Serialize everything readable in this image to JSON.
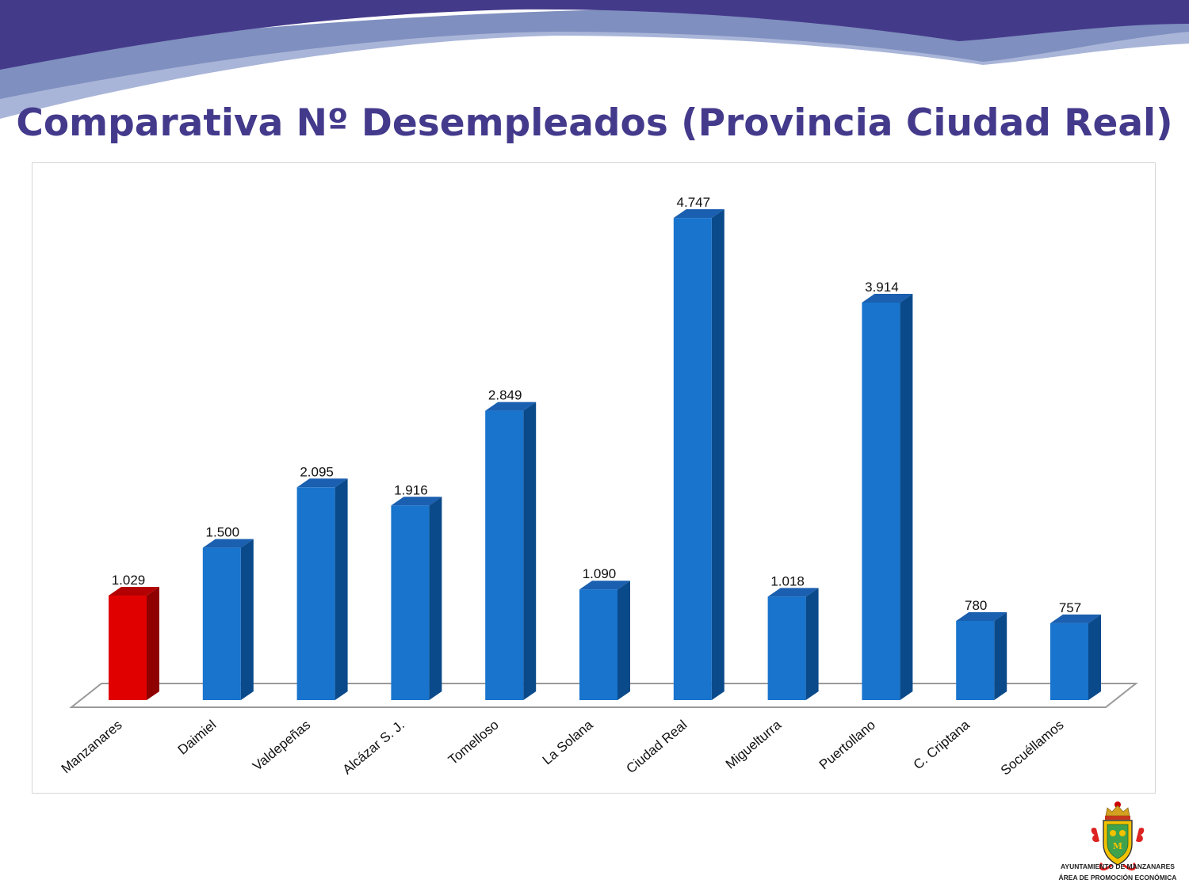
{
  "slide": {
    "title": "Comparativa Nº Desempleados (Provincia Ciudad Real)"
  },
  "logo": {
    "line1": "AYUNTAMIENTO DE MANZANARES",
    "line2": "ÁREA DE PROMOCIÓN ECONÓMICA"
  },
  "colors": {
    "title": "#433a8c",
    "banner_dark": "#443a8a",
    "banner_light": "#7f8fbf",
    "bar_blue": "#1874cd",
    "bar_red": "#e00000"
  },
  "chart_data": {
    "type": "bar",
    "style": "3d-column",
    "categories": [
      "Manzanares",
      "Daimiel",
      "Valdepeñas",
      "Alcázar S. J.",
      "Tomelloso",
      "La Solana",
      "Ciudad Real",
      "Miguelturra",
      "Puertollano",
      "C. Criptana",
      "Socuéllamos"
    ],
    "values": [
      1029,
      1500,
      2095,
      1916,
      2849,
      1090,
      4747,
      1018,
      3914,
      780,
      757
    ],
    "data_labels": [
      "1.029",
      "1.500",
      "2.095",
      "1.916",
      "2.849",
      "1.090",
      "4.747",
      "1.018",
      "3.914",
      "780",
      "757"
    ],
    "highlight_category": "Manzanares",
    "ylim": [
      0,
      5000
    ],
    "grid": false,
    "legend": "none"
  }
}
